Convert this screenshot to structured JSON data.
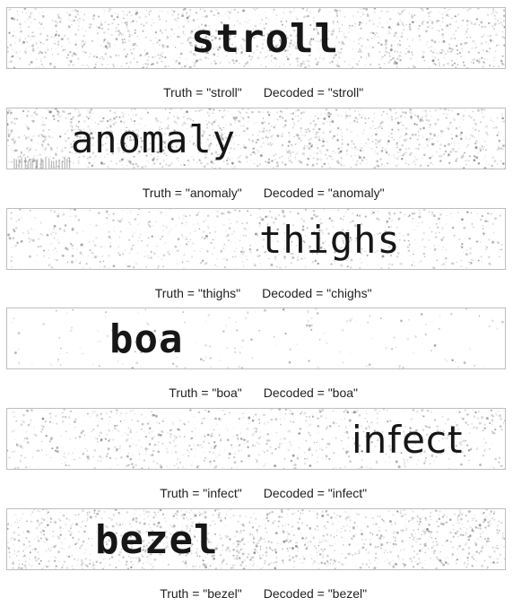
{
  "samples": [
    {
      "word": "stroll",
      "caption": {
        "truth": "Truth = \"stroll\"",
        "decoded": "Decoded = \"stroll\""
      }
    },
    {
      "word": "anomaly",
      "caption": {
        "truth": "Truth = \"anomaly\"",
        "decoded": "Decoded = \"anomaly\""
      }
    },
    {
      "word": "thighs",
      "caption": {
        "truth": "Truth = \"thighs\"",
        "decoded": "Decoded = \"chighs\""
      }
    },
    {
      "word": "boa",
      "caption": {
        "truth": "Truth = \"boa\"",
        "decoded": "Decoded = \"boa\""
      }
    },
    {
      "word": "infect",
      "caption": {
        "truth": "Truth = \"infect\"",
        "decoded": "Decoded = \"infect\""
      }
    },
    {
      "word": "bezel",
      "caption": {
        "truth": "Truth = \"bezel\"",
        "decoded": "Decoded = \"bezel\""
      }
    }
  ]
}
